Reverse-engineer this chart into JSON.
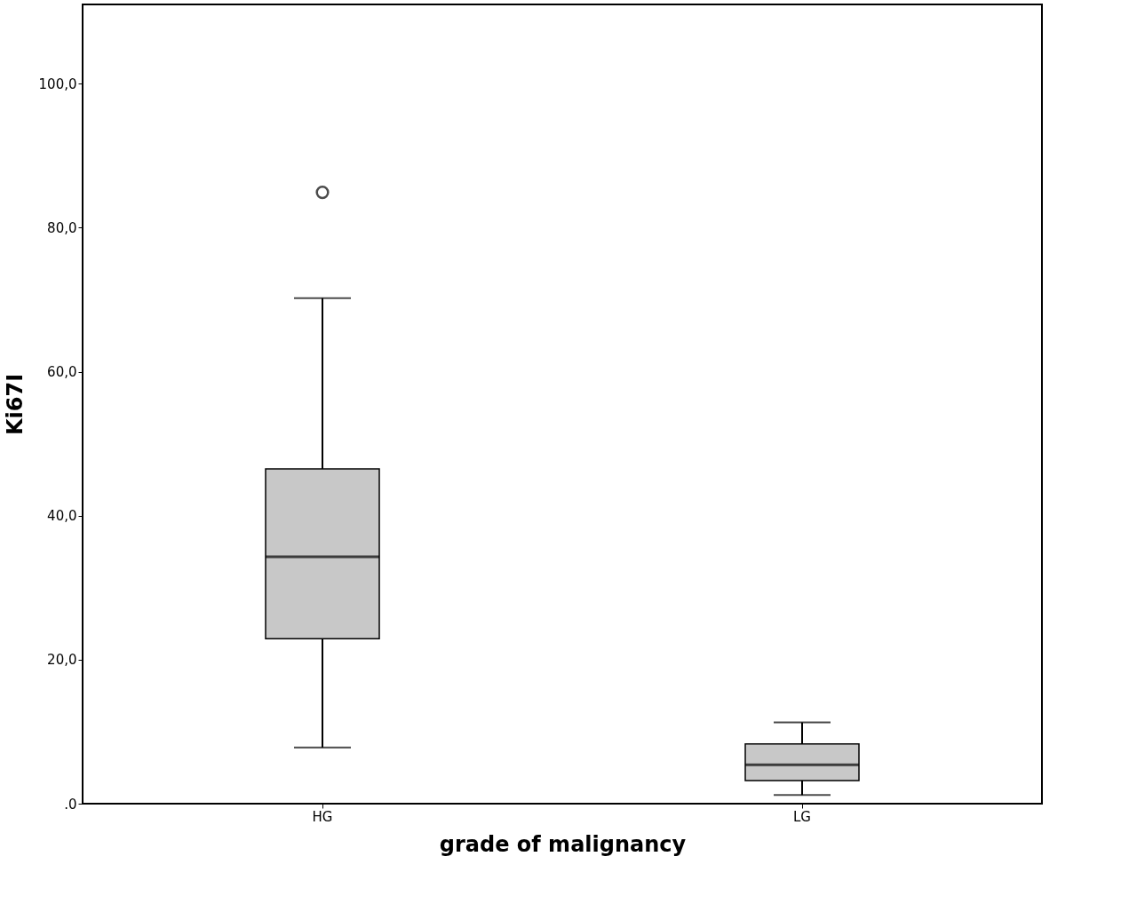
{
  "chart_data": {
    "type": "box",
    "xlabel": "grade of malignancy",
    "ylabel": "Ki67I",
    "categories": [
      "HG",
      "LG"
    ],
    "boxes": [
      {
        "low": 7.8,
        "q1": 22.9,
        "median": 34.3,
        "q3": 46.5,
        "high": 70.2,
        "outliers": [
          84.9
        ]
      },
      {
        "low": 1.2,
        "q1": 3.2,
        "median": 5.4,
        "q3": 8.3,
        "high": 11.3
      }
    ],
    "color": "#c8c8c8",
    "ylim": [
      0,
      111
    ],
    "yticks": [
      {
        "value": 0,
        "label": ".0"
      },
      {
        "value": 20,
        "label": "20,0"
      },
      {
        "value": 40,
        "label": "40,0"
      },
      {
        "value": 60,
        "label": "60,0"
      },
      {
        "value": 80,
        "label": "80,0"
      },
      {
        "value": 100,
        "label": "100,0"
      }
    ],
    "grid": false
  }
}
